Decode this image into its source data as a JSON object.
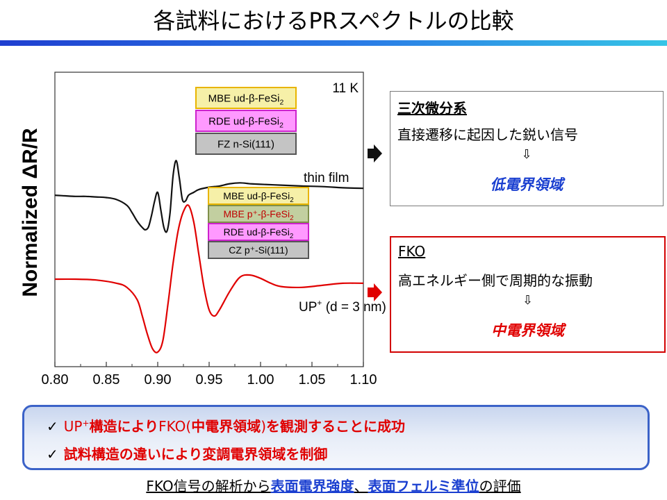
{
  "title": "各試料におけるPRスペクトルの比較",
  "chart_data": {
    "type": "line",
    "title": "",
    "ylabel": "Normalized ΔR/R",
    "xlabel": "",
    "xlim": [
      0.8,
      1.1
    ],
    "xticks": [
      "0.80",
      "0.85",
      "0.90",
      "0.95",
      "1.00",
      "1.05",
      "1.10"
    ],
    "grid": false,
    "temperature_label": "11 K",
    "series": [
      {
        "name": "thin film",
        "color": "#111111",
        "x": [
          0.8,
          0.81,
          0.82,
          0.83,
          0.84,
          0.85,
          0.86,
          0.87,
          0.875,
          0.88,
          0.885,
          0.888,
          0.891,
          0.894,
          0.897,
          0.9,
          0.903,
          0.906,
          0.909,
          0.912,
          0.915,
          0.918,
          0.921,
          0.924,
          0.927,
          0.93,
          0.935,
          0.94,
          0.95,
          0.96,
          0.97,
          0.98,
          0.99,
          1.0,
          1.02,
          1.04,
          1.06,
          1.08,
          1.1
        ],
        "y": [
          1.9,
          1.88,
          1.86,
          1.86,
          1.84,
          1.82,
          1.75,
          1.55,
          1.3,
          1.0,
          0.78,
          0.7,
          0.8,
          1.2,
          1.7,
          2.0,
          1.4,
          0.78,
          0.65,
          1.3,
          2.6,
          3.1,
          2.5,
          1.75,
          1.7,
          1.9,
          2.0,
          2.1,
          2.18,
          2.22,
          2.3,
          2.33,
          2.3,
          2.28,
          2.25,
          2.22,
          2.2,
          2.16,
          2.14
        ]
      },
      {
        "name": "UP⁺ (d = 3 nm)",
        "label": "UP",
        "label_sup": "+",
        "label_rest": " (d = 3 nm)",
        "color": "#e00000",
        "x": [
          0.8,
          0.82,
          0.84,
          0.86,
          0.87,
          0.88,
          0.885,
          0.89,
          0.895,
          0.9,
          0.905,
          0.91,
          0.915,
          0.92,
          0.925,
          0.93,
          0.935,
          0.94,
          0.945,
          0.95,
          0.955,
          0.96,
          0.97,
          0.98,
          0.99,
          1.0,
          1.01,
          1.02,
          1.04,
          1.06,
          1.08,
          1.1
        ],
        "y": [
          0.0,
          0.0,
          -0.02,
          -0.1,
          -0.2,
          -0.5,
          -0.9,
          -1.35,
          -1.7,
          -1.78,
          -1.5,
          -0.6,
          0.4,
          1.2,
          1.65,
          1.8,
          1.4,
          0.6,
          -0.2,
          -0.75,
          -0.9,
          -0.75,
          -0.3,
          0.05,
          0.1,
          0.02,
          -0.1,
          -0.18,
          -0.2,
          -0.15,
          -0.1,
          -0.1
        ]
      }
    ]
  },
  "legends": {
    "thin_film": [
      {
        "text": "MBE ud-β-FeSi",
        "sub": "2",
        "fill": "#f6f0a8",
        "border": "#e8b400"
      },
      {
        "text": "RDE ud-β-FeSi",
        "sub": "2",
        "fill": "#ff99ff",
        "border": "#cc22cc"
      },
      {
        "text": "FZ  n-Si(111)",
        "sub": "",
        "fill": "#c4c4c4",
        "border": "#555555"
      }
    ],
    "up": [
      {
        "text": "MBE ud-β-FeSi",
        "sub": "2",
        "fill": "#f6f0a8",
        "border": "#e8b400",
        "color": "#000000"
      },
      {
        "text": "MBE p⁺-β-FeSi",
        "sub": "2",
        "fill": "#c2cfa0",
        "border": "#7f8f4a",
        "color": "#c00000"
      },
      {
        "text": "RDE ud-β-FeSi",
        "sub": "2",
        "fill": "#ff99ff",
        "border": "#cc22cc",
        "color": "#000000"
      },
      {
        "text": "CZ  p⁺-Si(111)",
        "sub": "",
        "fill": "#c4c4c4",
        "border": "#555555",
        "color": "#000000"
      }
    ]
  },
  "box_black": {
    "heading": "三次微分系",
    "line2": "直接遷移に起因した鋭い信号",
    "arrow": "⇩",
    "result": "低電界領域"
  },
  "box_red": {
    "heading": "FKO",
    "line2": "高エネルギー側で周期的な振動",
    "arrow": "⇩",
    "result": "中電界領域"
  },
  "summary": {
    "check": "✓",
    "row1": {
      "a": "UP",
      "sup": "+",
      "b": "構造により",
      "c": "FKO(",
      "d": "中電界領域",
      "e": ")",
      "f": "を観測することに成功"
    },
    "row2": "試料構造の違いにより変調電界領域を制御"
  },
  "footer": {
    "p1": "FKO信号の解析から",
    "p2": "表面電界強度",
    "p3": "、",
    "p4": "表面フェルミ準位",
    "p5": "の評価"
  }
}
